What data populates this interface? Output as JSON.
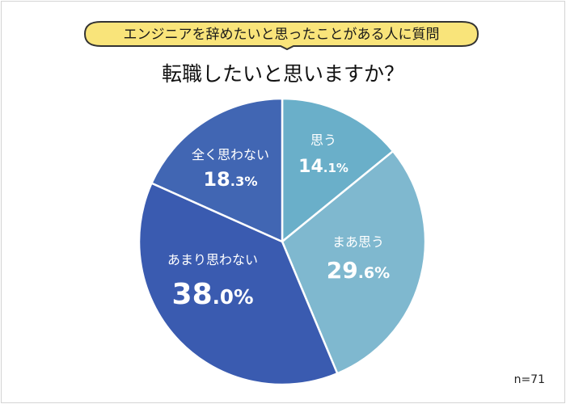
{
  "header": {
    "banner": "エンジニアを辞めたいと思ったことがある人に質問",
    "title": "転職したいと思いますか？"
  },
  "chart_data": {
    "type": "pie",
    "title": "転職したいと思いますか？",
    "subtitle": "エンジニアを辞めたいと思ったことがある人に質問",
    "categories": [
      "思う",
      "まあ思う",
      "あまり思わない",
      "全く思わない"
    ],
    "values": [
      14.1,
      29.6,
      38.0,
      18.3
    ],
    "unit": "%",
    "colors": [
      "#6aafc9",
      "#7fb8cf",
      "#3a5bb0",
      "#4166b3"
    ],
    "start_angle": "12 o'clock, clockwise",
    "sample_size": "n=71"
  },
  "labels": [
    {
      "name": "思う",
      "int": "14",
      "dec": ".1%"
    },
    {
      "name": "まあ思う",
      "int": "29",
      "dec": ".6%"
    },
    {
      "name": "あまり思わない",
      "int": "38",
      "dec": ".0%"
    },
    {
      "name": "全く思わない",
      "int": "18",
      "dec": ".3%"
    }
  ],
  "footer": {
    "n": "n=71"
  }
}
